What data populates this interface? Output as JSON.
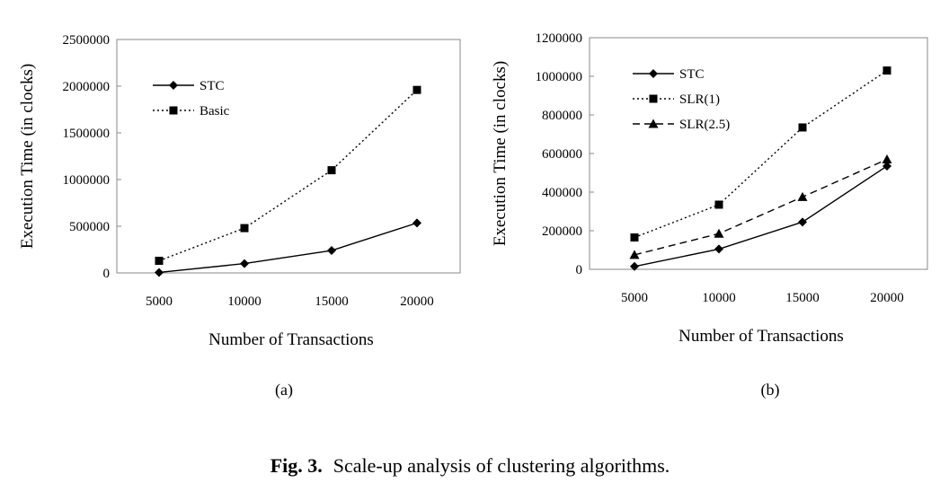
{
  "caption": {
    "label": "Fig. 3.",
    "text": "Scale-up analysis of clustering algorithms."
  },
  "chart_data": [
    {
      "type": "line",
      "panel_label": "(a)",
      "xlabel": "Number of Transactions",
      "ylabel": "Execution Time (in clocks)",
      "categories": [
        "5000",
        "10000",
        "15000",
        "20000"
      ],
      "yticks": [
        "0",
        "500000",
        "1000000",
        "1500000",
        "2000000",
        "2500000"
      ],
      "ylim": [
        0,
        2500000
      ],
      "grid": false,
      "legend_position": "top-left",
      "series": [
        {
          "name": "STC",
          "marker": "diamond",
          "dash": "solid",
          "values": [
            5000,
            100000,
            240000,
            535000
          ]
        },
        {
          "name": "Basic",
          "marker": "square",
          "dash": "dotted",
          "values": [
            130000,
            480000,
            1100000,
            1960000
          ]
        }
      ]
    },
    {
      "type": "line",
      "panel_label": "(b)",
      "xlabel": "Number of Transactions",
      "ylabel": "Execution Time (in clocks)",
      "categories": [
        "5000",
        "10000",
        "15000",
        "20000"
      ],
      "yticks": [
        "0",
        "200000",
        "400000",
        "600000",
        "800000",
        "1000000",
        "1200000"
      ],
      "ylim": [
        0,
        1200000
      ],
      "grid": false,
      "legend_position": "top-left",
      "series": [
        {
          "name": "STC",
          "marker": "diamond",
          "dash": "solid",
          "values": [
            15000,
            105000,
            245000,
            535000
          ]
        },
        {
          "name": "SLR(1)",
          "marker": "square",
          "dash": "dotted",
          "values": [
            165000,
            335000,
            735000,
            1030000
          ]
        },
        {
          "name": "SLR(2.5)",
          "marker": "triangle",
          "dash": "dashed",
          "values": [
            75000,
            185000,
            375000,
            570000
          ]
        }
      ]
    }
  ]
}
